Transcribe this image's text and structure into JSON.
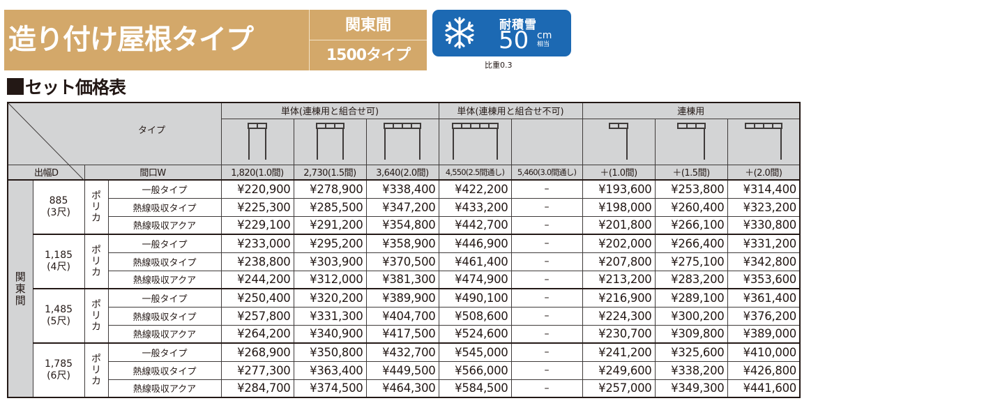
{
  "header": {
    "title": "造り付け屋根タイプ",
    "region": "関東間",
    "type": "1500タイプ",
    "banner_color": "#d3a86a"
  },
  "snow_badge": {
    "icon": "snowflake-icon",
    "label": "耐積雪",
    "value": "50",
    "unit": "cm",
    "unit_sub": "相当",
    "note": "比重0.3",
    "color": "#1c69b3"
  },
  "section_title": "セット価格表",
  "table": {
    "corner": {
      "type_label": "タイプ",
      "depth_label": "出幅D",
      "width_label": "間口W"
    },
    "groups": [
      {
        "label": "単体(連棟用と組合せ可)",
        "span": 3
      },
      {
        "label": "単体(連棟用と組合せ不可)",
        "span": 2
      },
      {
        "label": "連棟用",
        "span": 3
      }
    ],
    "columns": [
      {
        "width": "1,820(1.0間)",
        "pictogram": "frame-2bay-icon"
      },
      {
        "width": "2,730(1.5間)",
        "pictogram": "frame-3bay-icon"
      },
      {
        "width": "3,640(2.0間)",
        "pictogram": "frame-4bay-icon"
      },
      {
        "width": "4,550(2.5間通し)",
        "pictogram": "frame-5bay-icon"
      },
      {
        "width": "5,460(3.0間通し)",
        "pictogram": ""
      },
      {
        "width": "＋(1.0間)",
        "pictogram": "addon-2bay-icon"
      },
      {
        "width": "＋(1.5間)",
        "pictogram": "addon-3bay-icon"
      },
      {
        "width": "＋(2.0間)",
        "pictogram": "addon-4bay-icon"
      }
    ],
    "region_label": "関東間",
    "header_bg": "#d3d4d5",
    "depths": [
      {
        "depth": "885",
        "shaku": "(3尺)",
        "material": "ポリカ",
        "rows": [
          {
            "kind": "一般タイプ",
            "prices": [
              "¥220,900",
              "¥278,900",
              "¥338,400",
              "¥422,200",
              "–",
              "¥193,600",
              "¥253,800",
              "¥314,400"
            ]
          },
          {
            "kind": "熱線吸収タイプ",
            "prices": [
              "¥225,300",
              "¥285,500",
              "¥347,200",
              "¥433,200",
              "–",
              "¥198,000",
              "¥260,400",
              "¥323,200"
            ]
          },
          {
            "kind": "熱線吸収アクア",
            "prices": [
              "¥229,100",
              "¥291,200",
              "¥354,800",
              "¥442,700",
              "–",
              "¥201,800",
              "¥266,100",
              "¥330,800"
            ]
          }
        ]
      },
      {
        "depth": "1,185",
        "shaku": "(4尺)",
        "material": "ポリカ",
        "rows": [
          {
            "kind": "一般タイプ",
            "prices": [
              "¥233,000",
              "¥295,200",
              "¥358,900",
              "¥446,900",
              "–",
              "¥202,000",
              "¥266,400",
              "¥331,200"
            ]
          },
          {
            "kind": "熱線吸収タイプ",
            "prices": [
              "¥238,800",
              "¥303,900",
              "¥370,500",
              "¥461,400",
              "–",
              "¥207,800",
              "¥275,100",
              "¥342,800"
            ]
          },
          {
            "kind": "熱線吸収アクア",
            "prices": [
              "¥244,200",
              "¥312,000",
              "¥381,300",
              "¥474,900",
              "–",
              "¥213,200",
              "¥283,200",
              "¥353,600"
            ]
          }
        ]
      },
      {
        "depth": "1,485",
        "shaku": "(5尺)",
        "material": "ポリカ",
        "rows": [
          {
            "kind": "一般タイプ",
            "prices": [
              "¥250,400",
              "¥320,200",
              "¥389,900",
              "¥490,100",
              "–",
              "¥216,900",
              "¥289,100",
              "¥361,400"
            ]
          },
          {
            "kind": "熱線吸収タイプ",
            "prices": [
              "¥257,800",
              "¥331,300",
              "¥404,700",
              "¥508,600",
              "–",
              "¥224,300",
              "¥300,200",
              "¥376,200"
            ]
          },
          {
            "kind": "熱線吸収アクア",
            "prices": [
              "¥264,200",
              "¥340,900",
              "¥417,500",
              "¥524,600",
              "–",
              "¥230,700",
              "¥309,800",
              "¥389,000"
            ]
          }
        ]
      },
      {
        "depth": "1,785",
        "shaku": "(6尺)",
        "material": "ポリカ",
        "rows": [
          {
            "kind": "一般タイプ",
            "prices": [
              "¥268,900",
              "¥350,800",
              "¥432,700",
              "¥545,000",
              "–",
              "¥241,200",
              "¥325,600",
              "¥410,000"
            ]
          },
          {
            "kind": "熱線吸収タイプ",
            "prices": [
              "¥277,300",
              "¥363,400",
              "¥449,500",
              "¥566,000",
              "–",
              "¥249,600",
              "¥338,200",
              "¥426,800"
            ]
          },
          {
            "kind": "熱線吸収アクア",
            "prices": [
              "¥284,700",
              "¥374,500",
              "¥464,300",
              "¥584,500",
              "–",
              "¥257,000",
              "¥349,300",
              "¥441,600"
            ]
          }
        ]
      }
    ]
  }
}
